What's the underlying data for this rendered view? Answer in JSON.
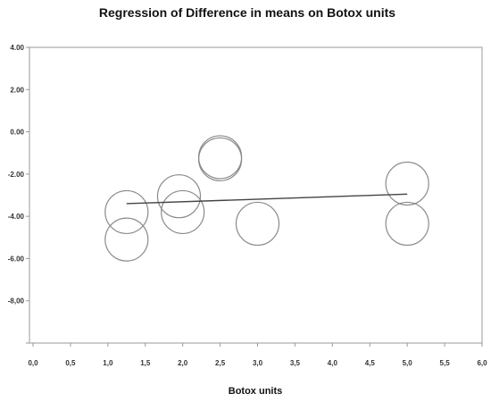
{
  "chart_data": {
    "type": "scatter",
    "title": "Regression of Difference in means on Botox units",
    "xlabel": "Botox units",
    "ylabel": "",
    "xlim": [
      0,
      6
    ],
    "ylim": [
      -10,
      4
    ],
    "x_ticks": [
      "0,0",
      "0,5",
      "1,0",
      "1,5",
      "2,0",
      "2,5",
      "3,0",
      "3,5",
      "4,0",
      "4,5",
      "5,0",
      "5,5",
      "6,0"
    ],
    "y_ticks": [
      "4.00",
      "2.00",
      "0.00",
      "-2.00",
      "-4.00",
      "-6.00",
      "-8,00",
      ""
    ],
    "grid": false,
    "legend": "none",
    "marker": "open-circle",
    "series": [
      {
        "points": [
          {
            "x": 1.25,
            "y": -3.8
          },
          {
            "x": 1.25,
            "y": -5.1
          },
          {
            "x": 1.95,
            "y": -3.05
          },
          {
            "x": 2.0,
            "y": -3.8
          },
          {
            "x": 2.5,
            "y": -1.2
          },
          {
            "x": 2.5,
            "y": -1.3
          },
          {
            "x": 3.0,
            "y": -4.35
          },
          {
            "x": 5.0,
            "y": -2.45
          },
          {
            "x": 5.0,
            "y": -4.35
          }
        ]
      }
    ],
    "regression_line": {
      "x": [
        1.25,
        5.0
      ],
      "y": [
        -3.4,
        -2.95
      ]
    },
    "colors": {
      "marker": "#8a8a8a",
      "line": "#444444",
      "axis": "#999999"
    }
  }
}
